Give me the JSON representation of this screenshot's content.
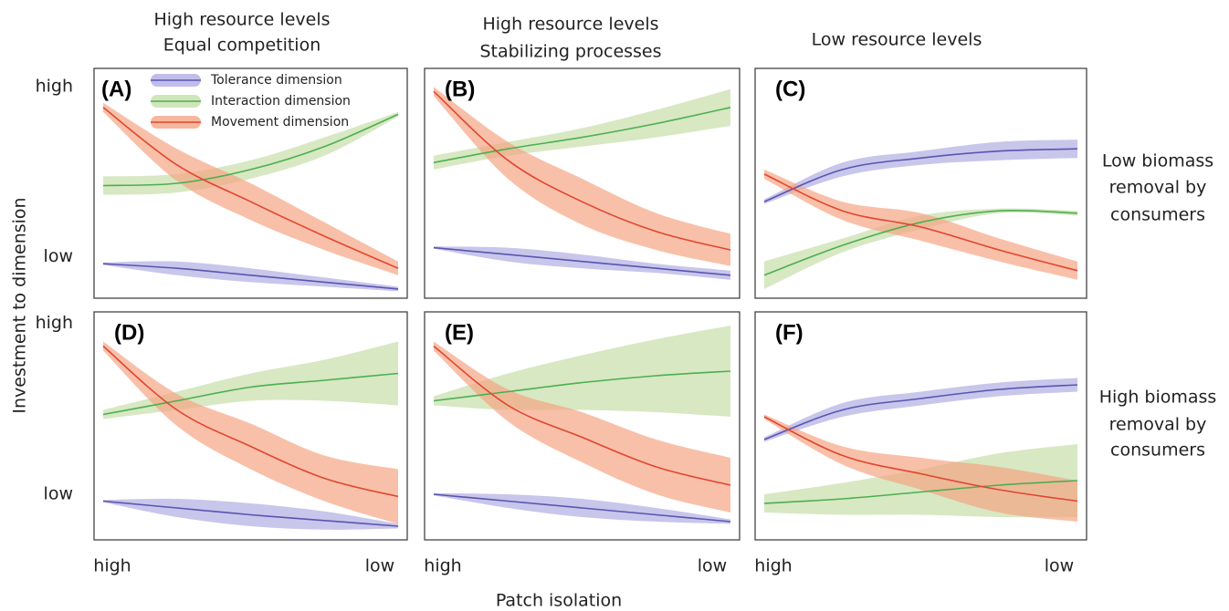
{
  "figure": {
    "column_titles": [
      [
        "High resource levels",
        "Equal competition"
      ],
      [
        "High resource levels",
        "Stabilizing processes"
      ],
      [
        "Low resource levels"
      ]
    ],
    "row_labels": [
      [
        "Low biomass",
        "removal by",
        "consumers"
      ],
      [
        "High biomass",
        "removal by",
        "consumers"
      ]
    ],
    "y_label": "Investment to dimension",
    "x_label": "Patch isolation"
  },
  "chart_data": [
    {
      "type": "line",
      "title": "(A)",
      "legend": "upper left",
      "xlim": [
        0,
        1
      ],
      "ylim": [
        0,
        10
      ],
      "yticks": [
        {
          "value": 9.2,
          "label": "high"
        },
        {
          "value": 1.8,
          "label": "low"
        }
      ],
      "x": [
        0,
        0.25,
        0.5,
        0.75,
        1
      ],
      "series": [
        {
          "name": "Tolerance dimension",
          "color": "#5a55b0",
          "band_color": "#b0aee3",
          "values": [
            1.5,
            1.3,
            1.0,
            0.7,
            0.4
          ],
          "lower": [
            1.45,
            1.0,
            0.7,
            0.5,
            0.3
          ],
          "upper": [
            1.55,
            1.6,
            1.3,
            0.9,
            0.5
          ]
        },
        {
          "name": "Interaction dimension",
          "color": "#4caf50",
          "band_color": "#c6dea9",
          "values": [
            4.9,
            5.0,
            5.6,
            6.6,
            8.0
          ],
          "lower": [
            4.5,
            4.6,
            5.2,
            6.2,
            7.9
          ],
          "upper": [
            5.3,
            5.4,
            6.0,
            7.0,
            8.1
          ]
        },
        {
          "name": "Movement dimension",
          "color": "#e2452f",
          "band_color": "#f5a585",
          "values": [
            8.3,
            5.8,
            4.2,
            2.7,
            1.3
          ],
          "lower": [
            8.1,
            5.1,
            3.4,
            2.1,
            1.0
          ],
          "upper": [
            8.5,
            6.5,
            5.0,
            3.3,
            1.6
          ]
        }
      ]
    },
    {
      "type": "line",
      "title": "(B)",
      "xlim": [
        0,
        1
      ],
      "ylim": [
        0,
        10
      ],
      "x": [
        0,
        0.25,
        0.5,
        0.75,
        1
      ],
      "series": [
        {
          "color": "#5a55b0",
          "band_color": "#b0aee3",
          "values": [
            2.2,
            1.9,
            1.6,
            1.3,
            1.0
          ],
          "lower": [
            2.15,
            1.6,
            1.3,
            1.1,
            0.8
          ],
          "upper": [
            2.25,
            2.2,
            1.9,
            1.5,
            1.2
          ]
        },
        {
          "color": "#4caf50",
          "band_color": "#c6dea9",
          "values": [
            5.9,
            6.5,
            7.0,
            7.6,
            8.3
          ],
          "lower": [
            5.6,
            6.2,
            6.6,
            7.0,
            7.5
          ],
          "upper": [
            6.2,
            6.8,
            7.4,
            8.2,
            9.1
          ]
        },
        {
          "color": "#e2452f",
          "band_color": "#f5a585",
          "values": [
            9.0,
            6.0,
            4.2,
            2.9,
            2.1
          ],
          "lower": [
            8.8,
            5.2,
            3.2,
            2.1,
            1.4
          ],
          "upper": [
            9.2,
            6.8,
            5.2,
            3.7,
            2.8
          ]
        }
      ]
    },
    {
      "type": "line",
      "title": "(C)",
      "xlim": [
        0,
        1
      ],
      "ylim": [
        0,
        10
      ],
      "x": [
        0,
        0.25,
        0.5,
        0.75,
        1
      ],
      "series": [
        {
          "color": "#5a55b0",
          "band_color": "#b0aee3",
          "values": [
            4.2,
            5.6,
            6.1,
            6.4,
            6.5
          ],
          "lower": [
            4.1,
            5.3,
            5.8,
            6.0,
            6.1
          ],
          "upper": [
            4.3,
            5.9,
            6.4,
            6.8,
            6.9
          ]
        },
        {
          "color": "#4caf50",
          "band_color": "#c6dea9",
          "values": [
            1.0,
            2.3,
            3.3,
            3.8,
            3.7
          ],
          "lower": [
            0.4,
            2.0,
            3.0,
            3.7,
            3.6
          ],
          "upper": [
            1.6,
            2.6,
            3.6,
            3.9,
            3.8
          ]
        },
        {
          "color": "#e2452f",
          "band_color": "#f5a585",
          "values": [
            5.4,
            3.8,
            3.1,
            2.1,
            1.2
          ],
          "lower": [
            5.2,
            3.4,
            2.5,
            1.6,
            0.8
          ],
          "upper": [
            5.6,
            4.2,
            3.7,
            2.6,
            1.6
          ]
        }
      ]
    },
    {
      "type": "line",
      "title": "(D)",
      "xlim": [
        0,
        1
      ],
      "ylim": [
        0,
        10
      ],
      "yticks": [
        {
          "value": 9.5,
          "label": "high"
        },
        {
          "value": 2.0,
          "label": "low"
        }
      ],
      "xticks": [
        {
          "value": 0,
          "label": "high"
        },
        {
          "value": 1,
          "label": "low"
        }
      ],
      "x": [
        0,
        0.25,
        0.5,
        0.75,
        1
      ],
      "series": [
        {
          "color": "#5a55b0",
          "band_color": "#b0aee3",
          "values": [
            1.7,
            1.4,
            1.1,
            0.85,
            0.6
          ],
          "lower": [
            1.65,
            1.0,
            0.6,
            0.45,
            0.5
          ],
          "upper": [
            1.75,
            1.8,
            1.6,
            1.25,
            0.7
          ]
        },
        {
          "color": "#4caf50",
          "band_color": "#c6dea9",
          "values": [
            5.5,
            6.1,
            6.7,
            7.0,
            7.3
          ],
          "lower": [
            5.3,
            5.7,
            6.1,
            6.1,
            5.9
          ],
          "upper": [
            5.7,
            6.5,
            7.3,
            7.9,
            8.7
          ]
        },
        {
          "color": "#e2452f",
          "band_color": "#f5a585",
          "values": [
            8.5,
            5.7,
            4.1,
            2.7,
            1.9
          ],
          "lower": [
            8.3,
            5.0,
            3.1,
            1.7,
            0.7
          ],
          "upper": [
            8.7,
            6.4,
            5.1,
            3.7,
            3.1
          ]
        }
      ]
    },
    {
      "type": "line",
      "title": "(E)",
      "xlim": [
        0,
        1
      ],
      "ylim": [
        0,
        10
      ],
      "xticks": [
        {
          "value": 0,
          "label": "high"
        },
        {
          "value": 1,
          "label": "low"
        }
      ],
      "x": [
        0,
        0.25,
        0.5,
        0.75,
        1
      ],
      "series": [
        {
          "color": "#5a55b0",
          "band_color": "#b0aee3",
          "values": [
            2.0,
            1.7,
            1.4,
            1.1,
            0.8
          ],
          "lower": [
            1.95,
            1.4,
            1.0,
            0.8,
            0.7
          ],
          "upper": [
            2.05,
            2.0,
            1.8,
            1.4,
            0.9
          ]
        },
        {
          "color": "#4caf50",
          "band_color": "#c6dea9",
          "values": [
            6.1,
            6.5,
            6.9,
            7.2,
            7.4
          ],
          "lower": [
            5.9,
            5.7,
            5.7,
            5.6,
            5.4
          ],
          "upper": [
            6.3,
            7.3,
            8.1,
            8.8,
            9.4
          ]
        },
        {
          "color": "#e2452f",
          "band_color": "#f5a585",
          "values": [
            8.5,
            5.9,
            4.5,
            3.2,
            2.4
          ],
          "lower": [
            8.3,
            5.2,
            3.4,
            2.0,
            1.2
          ],
          "upper": [
            8.7,
            6.6,
            5.6,
            4.4,
            3.6
          ]
        }
      ]
    },
    {
      "type": "line",
      "title": "(F)",
      "xlim": [
        0,
        1
      ],
      "ylim": [
        0,
        10
      ],
      "xticks": [
        {
          "value": 0,
          "label": "high"
        },
        {
          "value": 1,
          "label": "low"
        }
      ],
      "x": [
        0,
        0.25,
        0.5,
        0.75,
        1
      ],
      "series": [
        {
          "color": "#5a55b0",
          "band_color": "#b0aee3",
          "values": [
            4.4,
            5.7,
            6.2,
            6.6,
            6.8
          ],
          "lower": [
            4.3,
            5.4,
            5.9,
            6.3,
            6.5
          ],
          "upper": [
            4.5,
            6.0,
            6.5,
            6.9,
            7.1
          ]
        },
        {
          "color": "#4caf50",
          "band_color": "#c6dea9",
          "values": [
            1.6,
            1.8,
            2.1,
            2.4,
            2.6
          ],
          "lower": [
            1.2,
            1.1,
            1.1,
            1.0,
            1.0
          ],
          "upper": [
            2.0,
            2.5,
            3.1,
            3.8,
            4.2
          ]
        },
        {
          "color": "#e2452f",
          "band_color": "#f5a585",
          "values": [
            5.4,
            3.7,
            2.9,
            2.2,
            1.7
          ],
          "lower": [
            5.3,
            3.3,
            2.2,
            1.2,
            0.8
          ],
          "upper": [
            5.5,
            4.1,
            3.6,
            3.2,
            2.6
          ]
        }
      ]
    }
  ]
}
